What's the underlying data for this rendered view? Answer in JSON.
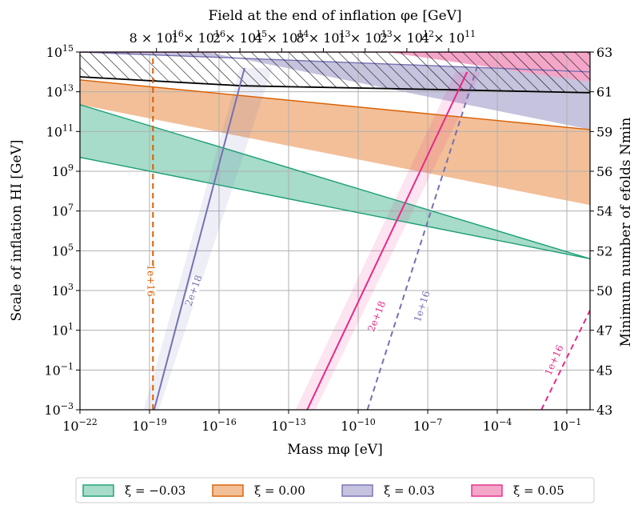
{
  "chart_data": {
    "type": "area",
    "title": "Field at the end of inflation φe [GeV]",
    "xlabel": "Mass mφ [eV]",
    "ylabel": "Scale of inflation HI [GeV]",
    "y2label": "Minimum number of efolds Nmin",
    "x_scale": "log",
    "y_scale": "log",
    "xlim": [
      1e-22,
      1
    ],
    "ylim": [
      0.001,
      1000000000000000.0
    ],
    "grid": true,
    "legend_position": "bottom",
    "x_ticks": [
      {
        "exp": -22,
        "label": "10",
        "sup": "−22"
      },
      {
        "exp": -19,
        "label": "10",
        "sup": "−19"
      },
      {
        "exp": -16,
        "label": "10",
        "sup": "−16"
      },
      {
        "exp": -13,
        "label": "10",
        "sup": "−13"
      },
      {
        "exp": -10,
        "label": "10",
        "sup": "−10"
      },
      {
        "exp": -7,
        "label": "10",
        "sup": "−7"
      },
      {
        "exp": -4,
        "label": "10",
        "sup": "−4"
      },
      {
        "exp": -1,
        "label": "10",
        "sup": "−1"
      }
    ],
    "y_ticks": [
      {
        "exp": -3,
        "label": "10",
        "sup": "−3"
      },
      {
        "exp": -1,
        "label": "10",
        "sup": "−1"
      },
      {
        "exp": 1,
        "label": "10",
        "sup": "1"
      },
      {
        "exp": 3,
        "label": "10",
        "sup": "3"
      },
      {
        "exp": 5,
        "label": "10",
        "sup": "5"
      },
      {
        "exp": 7,
        "label": "10",
        "sup": "7"
      },
      {
        "exp": 9,
        "label": "10",
        "sup": "9"
      },
      {
        "exp": 11,
        "label": "10",
        "sup": "11"
      },
      {
        "exp": 13,
        "label": "10",
        "sup": "13"
      },
      {
        "exp": 15,
        "label": "10",
        "sup": "15"
      }
    ],
    "top_ticks": [
      {
        "exp": -18.7,
        "label": "8 × 10",
        "sup": "16"
      },
      {
        "exp": -16.9,
        "label": "1 × 10",
        "sup": "16"
      },
      {
        "exp": -15.1,
        "label": "2 × 10",
        "sup": "15"
      },
      {
        "exp": -13.3,
        "label": "4 × 10",
        "sup": "14"
      },
      {
        "exp": -11.5,
        "label": "8 × 10",
        "sup": "13"
      },
      {
        "exp": -9.7,
        "label": "1 × 10",
        "sup": "13"
      },
      {
        "exp": -7.9,
        "label": "2 × 10",
        "sup": "12"
      },
      {
        "exp": -6.1,
        "label": "4 × 10",
        "sup": "11"
      }
    ],
    "right_ticks": [
      {
        "yexp": 15,
        "label": "63"
      },
      {
        "yexp": 13,
        "label": "61"
      },
      {
        "yexp": 11,
        "label": "59"
      },
      {
        "yexp": 9,
        "label": "56"
      },
      {
        "yexp": 7,
        "label": "54"
      },
      {
        "yexp": 5,
        "label": "52"
      },
      {
        "yexp": 3,
        "label": "50"
      },
      {
        "yexp": 1,
        "label": "47"
      },
      {
        "yexp": -1,
        "label": "45"
      },
      {
        "yexp": -3,
        "label": "43"
      }
    ],
    "bands": [
      {
        "name": "ξ = −0.03",
        "legend": "ξ = −0.03",
        "fill": "#a6dcc9",
        "edge": "#1b9e77",
        "upper": [
          [
            -22,
            12.35
          ],
          [
            0,
            4.6
          ]
        ],
        "lower": [
          [
            -22,
            9.7
          ],
          [
            0,
            4.6
          ]
        ],
        "lower_edge": [
          [
            -22,
            9.7
          ],
          [
            0,
            4.6
          ]
        ]
      },
      {
        "name": "ξ = 0.00",
        "legend": "ξ = 0.00",
        "fill": "#f2bf98",
        "edge": "#d95f02",
        "upper": [
          [
            -22,
            13.6
          ],
          [
            0,
            11.1
          ]
        ],
        "lower": [
          [
            -22,
            12.35
          ],
          [
            0,
            7.3
          ]
        ]
      },
      {
        "name": "ξ = 0.03",
        "legend": "ξ = 0.03",
        "fill": "#c5c3de",
        "edge": "#7570b3",
        "upper": [
          [
            -22,
            15.0
          ],
          [
            0,
            14.0
          ]
        ],
        "lower": [
          [
            -22,
            15.0
          ],
          [
            -16.5,
            15.0
          ],
          [
            0,
            11.1
          ]
        ]
      },
      {
        "name": "ξ = 0.05",
        "legend": "ξ = 0.05",
        "fill": "#f4a6c8",
        "edge": "#e7298a",
        "upper": [
          [
            -22,
            15.0
          ],
          [
            0,
            15.0
          ]
        ],
        "lower": [
          [
            -22,
            15.0
          ],
          [
            -8.8,
            15.0
          ],
          [
            0,
            13.5
          ]
        ]
      }
    ],
    "exclusion_line": [
      [
        -22,
        13.75
      ],
      [
        -15,
        13.3
      ],
      [
        -6,
        13.1
      ],
      [
        0,
        12.95
      ]
    ],
    "curves": [
      {
        "label": "1e+16",
        "color": "#d95f02",
        "dashed": true,
        "points": [
          [
            -18.85,
            -3
          ],
          [
            -18.85,
            14.9
          ]
        ],
        "label_at": [
          -18.95,
          3.5
        ],
        "angle": 90
      },
      {
        "label": "2e+18",
        "color": "#7570b3",
        "dashed": false,
        "points": [
          [
            -18.8,
            -3
          ],
          [
            -14.9,
            14.2
          ]
        ],
        "label_at": [
          -17.1,
          3.0
        ],
        "angle": -70
      },
      {
        "label": "2e+18",
        "color": "#e7298a",
        "dashed": false,
        "points": [
          [
            -12.2,
            -3
          ],
          [
            -5.3,
            14.0
          ]
        ],
        "label_at": [
          -9.2,
          1.7
        ],
        "angle": -68
      },
      {
        "label": "1e+16",
        "color": "#7570b3",
        "dashed": true,
        "points": [
          [
            -9.6,
            -3
          ],
          [
            -4.8,
            14.5
          ]
        ],
        "label_at": [
          -7.25,
          2.2
        ],
        "angle": -72
      },
      {
        "label": "1e+16",
        "color": "#e7298a",
        "dashed": true,
        "points": [
          [
            -2.1,
            -3
          ],
          [
            0,
            2.0
          ]
        ],
        "label_at": [
          -1.55,
          -0.5
        ],
        "angle": -66
      }
    ],
    "shadows": [
      {
        "color": "#7570b3",
        "points": [
          [
            -19.25,
            -3
          ],
          [
            -18.6,
            -3
          ],
          [
            -13.7,
            14.2
          ],
          [
            -15.1,
            14.2
          ]
        ]
      },
      {
        "color": "#e7298a",
        "points": [
          [
            -12.7,
            -3
          ],
          [
            -11.85,
            -3
          ],
          [
            -4.7,
            14.0
          ],
          [
            -5.8,
            14.0
          ]
        ]
      }
    ]
  }
}
